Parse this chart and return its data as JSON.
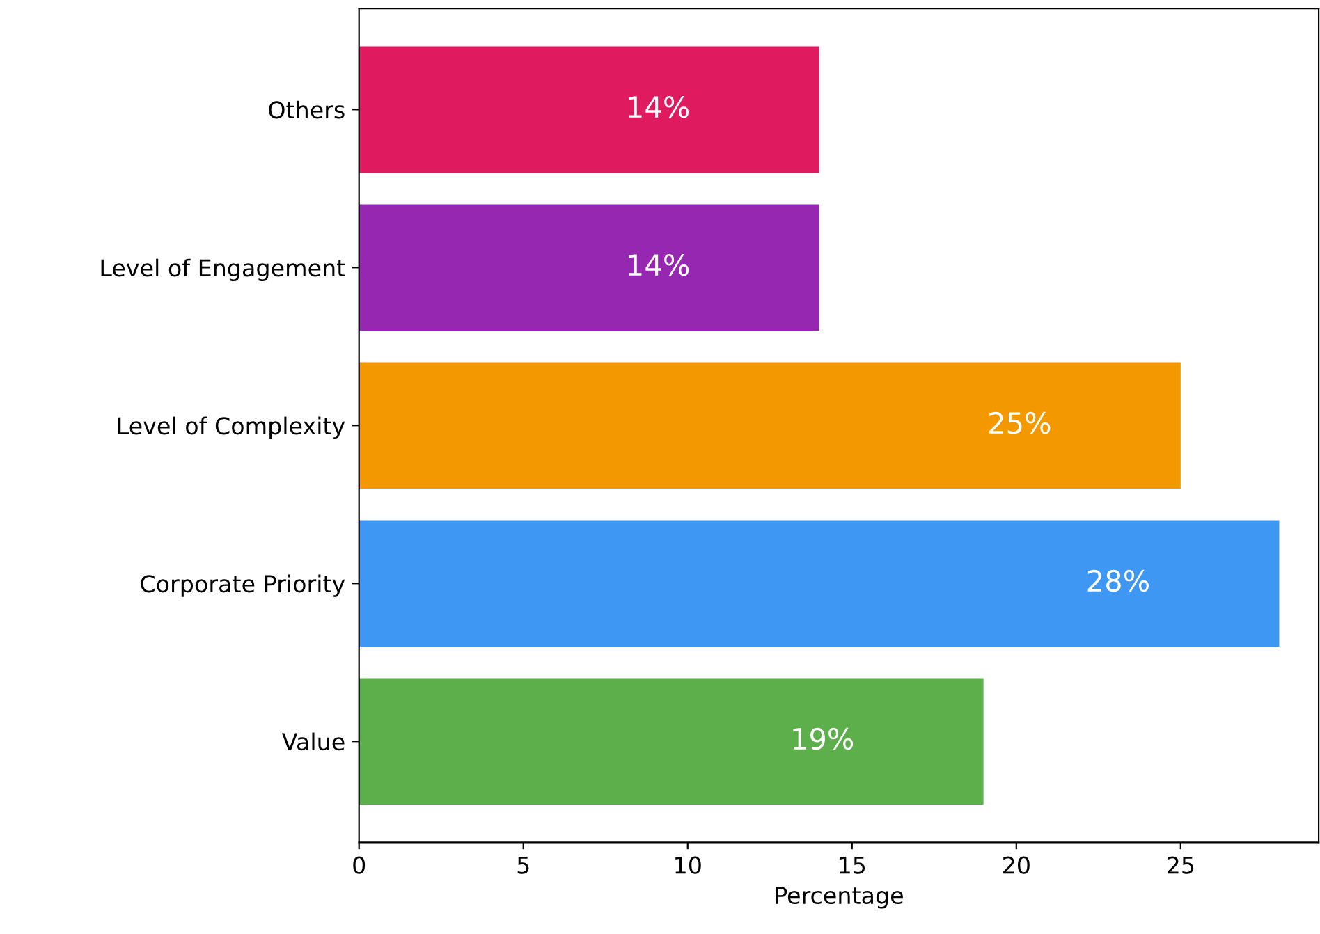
{
  "chart_data": {
    "type": "bar",
    "orientation": "horizontal",
    "xlabel": "Percentage",
    "categories": [
      "Others",
      "Level of Engagement",
      "Level of Complexity",
      "Corporate Priority",
      "Value"
    ],
    "values": [
      14,
      14,
      25,
      28,
      19
    ],
    "colors": [
      "#e01a5f",
      "#9527b0",
      "#f49800",
      "#3f97f4",
      "#5caf4b"
    ],
    "value_labels": [
      "14%",
      "14%",
      "25%",
      "28%",
      "19%"
    ],
    "xlim": [
      0,
      29.2
    ],
    "xticks": [
      0,
      5,
      10,
      15,
      20,
      25
    ],
    "grid": false,
    "legend": false
  }
}
